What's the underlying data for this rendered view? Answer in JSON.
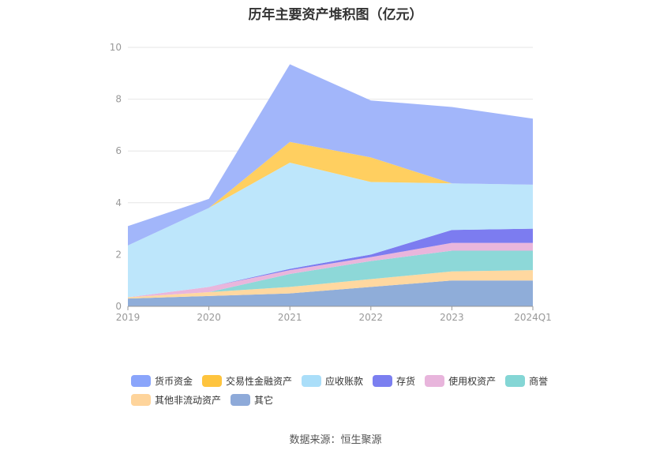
{
  "chart_data": {
    "type": "area",
    "stacked": true,
    "title": "历年主要资产堆积图（亿元）",
    "categories": [
      "2019",
      "2020",
      "2021",
      "2022",
      "2023",
      "2024Q1"
    ],
    "ylim": [
      0,
      10
    ],
    "yticks": [
      0,
      2,
      4,
      6,
      8,
      10
    ],
    "grid": true,
    "legend_position": "bottom",
    "series": [
      {
        "name": "其它",
        "color": "#8fadd9",
        "values": [
          0.3,
          0.4,
          0.5,
          0.75,
          1.0,
          1.0
        ]
      },
      {
        "name": "其他非流动资产",
        "color": "#ffd8a0",
        "values": [
          0.05,
          0.15,
          0.25,
          0.3,
          0.35,
          0.4
        ]
      },
      {
        "name": "商誉",
        "color": "#8dd8d8",
        "values": [
          0.0,
          0.0,
          0.5,
          0.7,
          0.8,
          0.75
        ]
      },
      {
        "name": "使用权资产",
        "color": "#e9b6dc",
        "values": [
          0.0,
          0.2,
          0.15,
          0.15,
          0.3,
          0.3
        ]
      },
      {
        "name": "存货",
        "color": "#7c7cf0",
        "values": [
          0.0,
          0.0,
          0.05,
          0.1,
          0.5,
          0.55
        ]
      },
      {
        "name": "应收账款",
        "color": "#bde6fb",
        "values": [
          2.0,
          3.05,
          4.1,
          2.8,
          1.8,
          1.7
        ]
      },
      {
        "name": "交易性金融资产",
        "color": "#ffcf60",
        "values": [
          0.0,
          0.0,
          0.8,
          0.95,
          0.0,
          0.0
        ]
      },
      {
        "name": "货币资金",
        "color": "#a2b6fa",
        "values": [
          0.75,
          0.35,
          3.0,
          2.2,
          2.95,
          2.55
        ]
      }
    ]
  },
  "legend": [
    {
      "label": "货币资金",
      "color": "#8aa5fb"
    },
    {
      "label": "交易性金融资产",
      "color": "#fec43e"
    },
    {
      "label": "应收账款",
      "color": "#aadef9"
    },
    {
      "label": "存货",
      "color": "#7b7ff0"
    },
    {
      "label": "使用权资产",
      "color": "#e8b5dc"
    },
    {
      "label": "商誉",
      "color": "#84d6d5"
    },
    {
      "label": "其他非流动资产",
      "color": "#fed49b"
    },
    {
      "label": "其它",
      "color": "#8eaad9"
    }
  ],
  "source": "数据来源：恒生聚源"
}
